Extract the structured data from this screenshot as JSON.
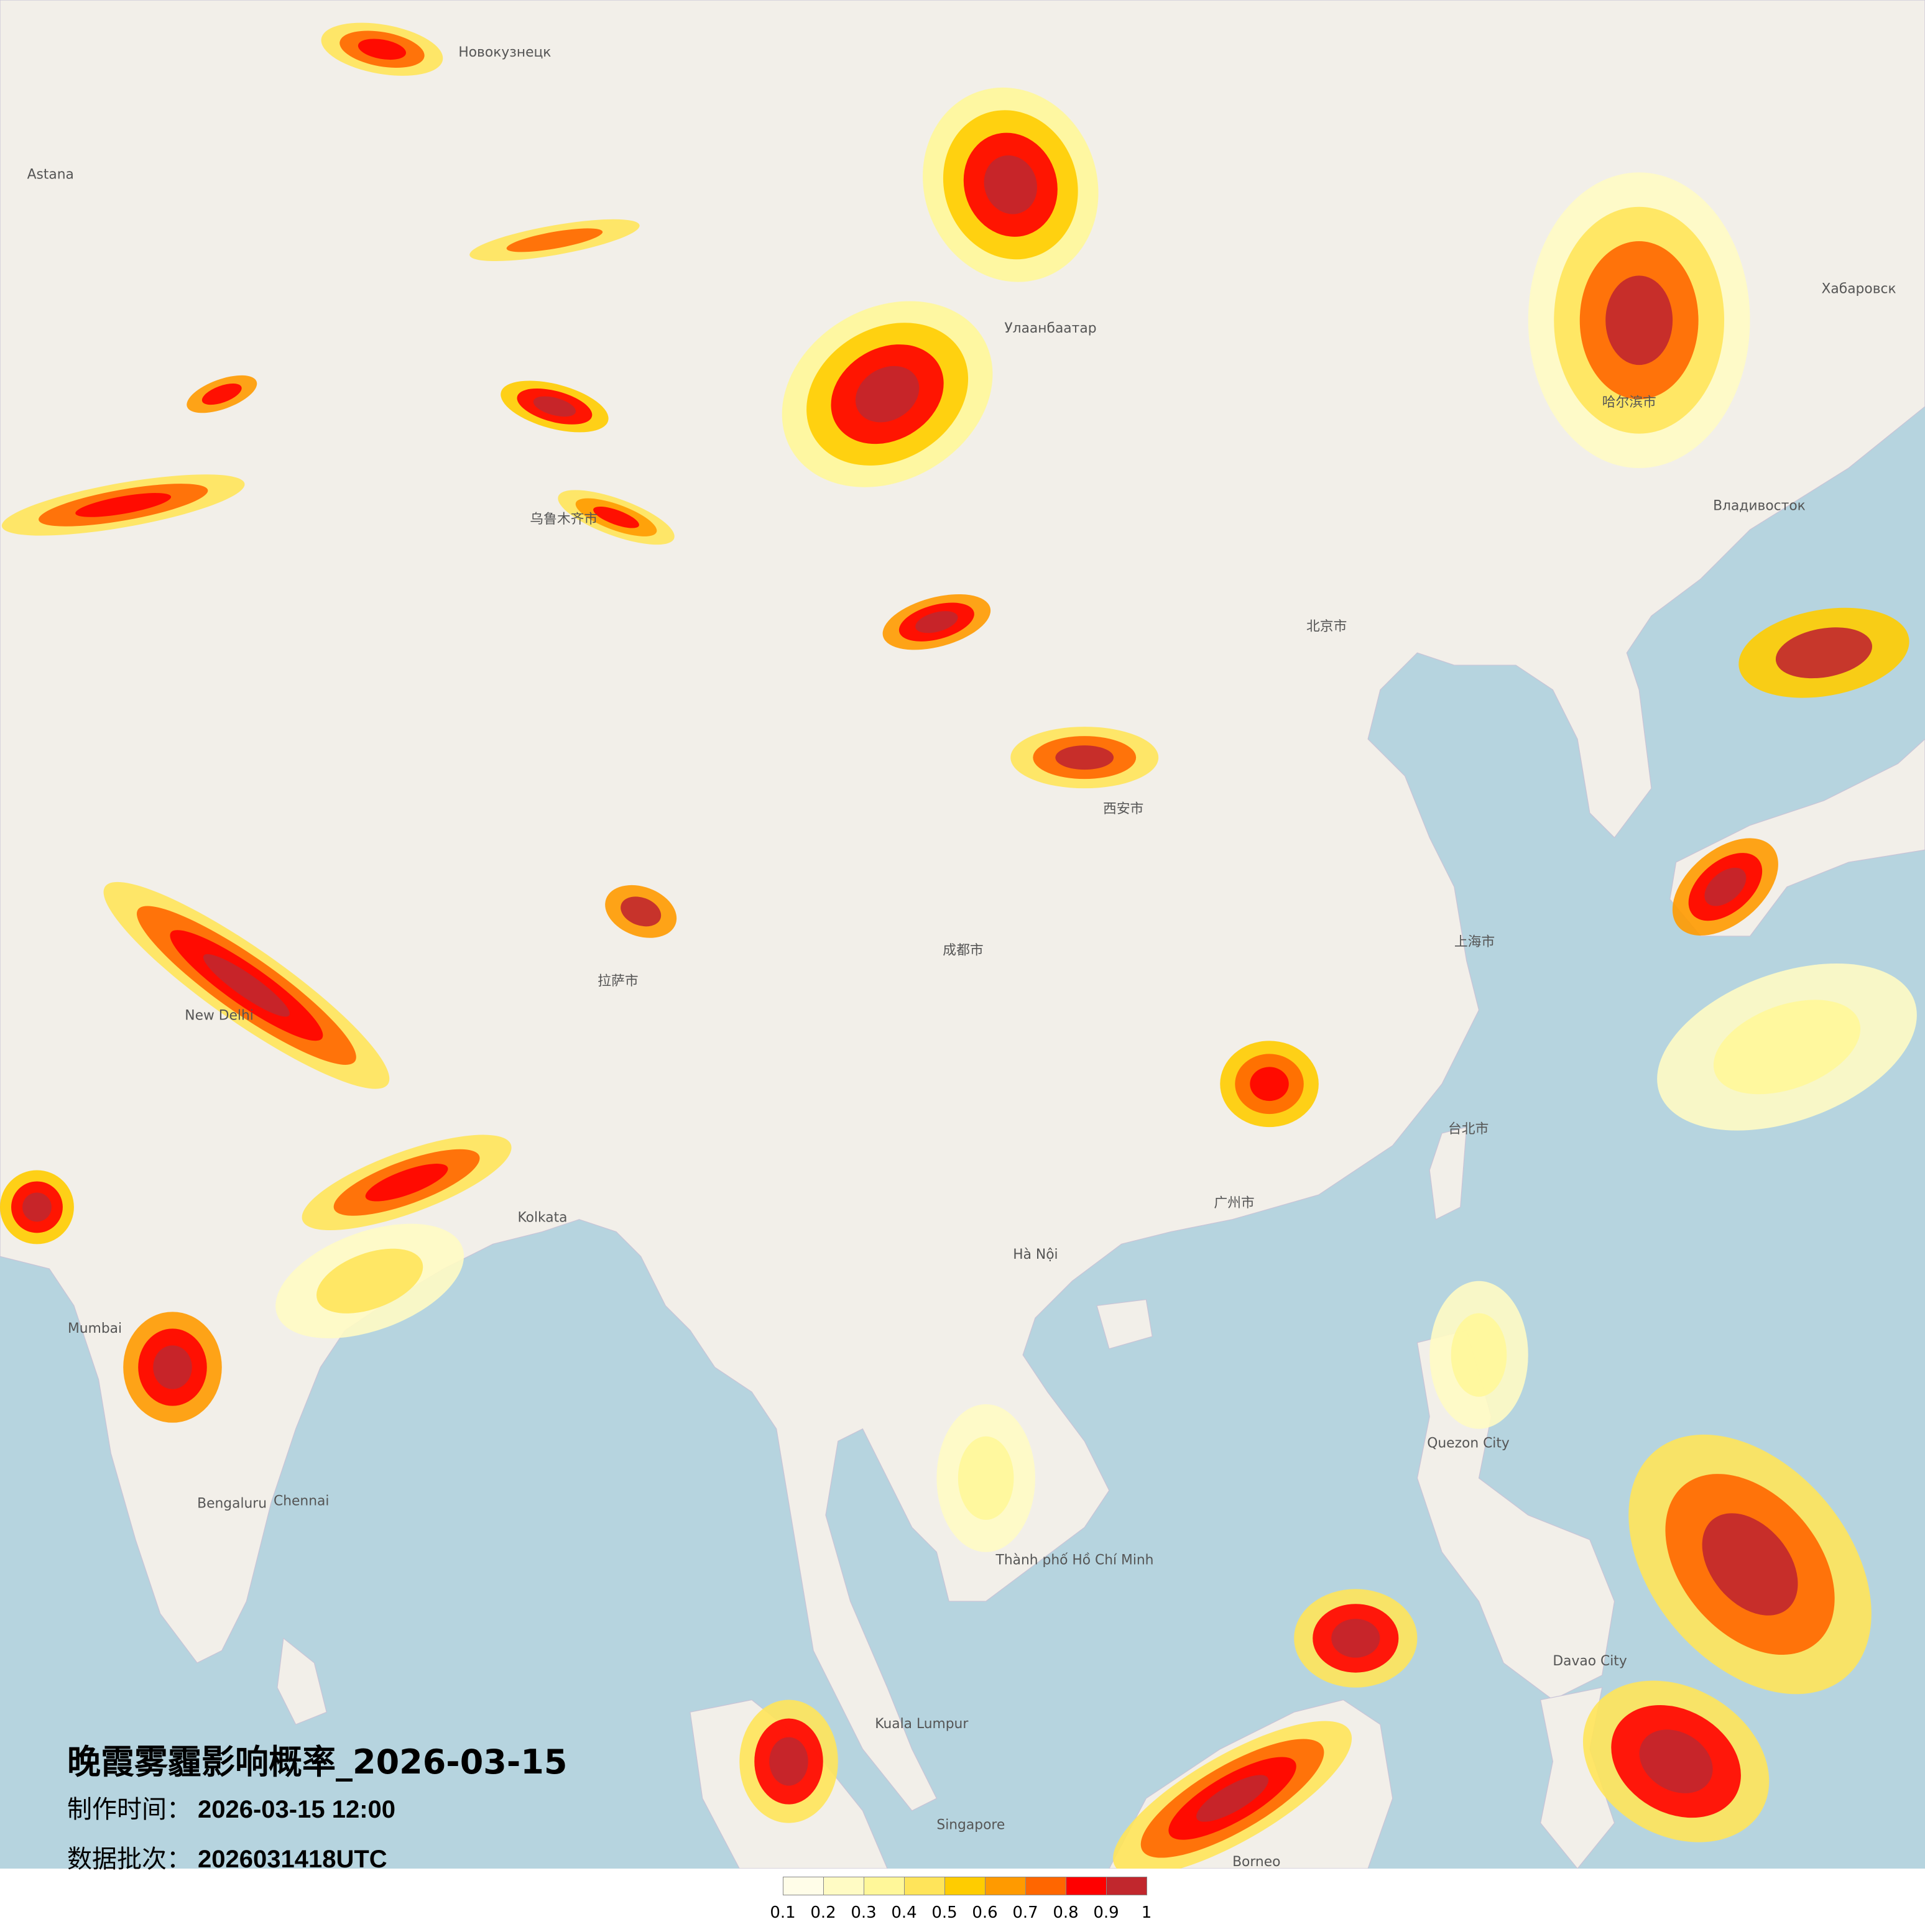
{
  "title": "晚霞雾霾影响概率_2026-03-15",
  "production_time": {
    "label": "制作时间：",
    "value": "2026-03-15 12:00"
  },
  "data_batch": {
    "label": "数据批次：",
    "value": "2026031418UTC"
  },
  "legend": {
    "ticks": [
      "0.1",
      "0.2",
      "0.3",
      "0.4",
      "0.5",
      "0.6",
      "0.7",
      "0.8",
      "0.9",
      "1"
    ],
    "colors": [
      "#fffde8",
      "#fffbc4",
      "#fff799",
      "#ffe45a",
      "#ffcc00",
      "#ff9a00",
      "#ff6600",
      "#ff0000",
      "#c1272d"
    ]
  },
  "colors": {
    "sea": "#b6d4df",
    "land": "#f2efe9"
  },
  "places": [
    {
      "name": "Улаанбаатар"
    },
    {
      "name": "北京市"
    },
    {
      "name": "上海市"
    },
    {
      "name": "广州市"
    },
    {
      "name": "New Delhi"
    },
    {
      "name": "Kolkata"
    },
    {
      "name": "Hà Nội"
    },
    {
      "name": "Bengaluru"
    },
    {
      "name": "Хабаровск"
    },
    {
      "name": "Владивосток"
    },
    {
      "name": "Astana"
    },
    {
      "name": "Новокузнецк"
    },
    {
      "name": "乌鲁木齐市"
    },
    {
      "name": "拉萨市"
    },
    {
      "name": "成都市"
    },
    {
      "name": "西安市"
    },
    {
      "name": "Thành phố Hồ Chí Minh"
    },
    {
      "name": "Kuala Lumpur"
    },
    {
      "name": "Singapore"
    },
    {
      "name": "Quezon City"
    },
    {
      "name": "Davao City"
    },
    {
      "name": "Borneo"
    },
    {
      "name": "Mumbai"
    },
    {
      "name": "Chennai"
    },
    {
      "name": "哈尔滨市"
    },
    {
      "name": "台北市"
    }
  ]
}
